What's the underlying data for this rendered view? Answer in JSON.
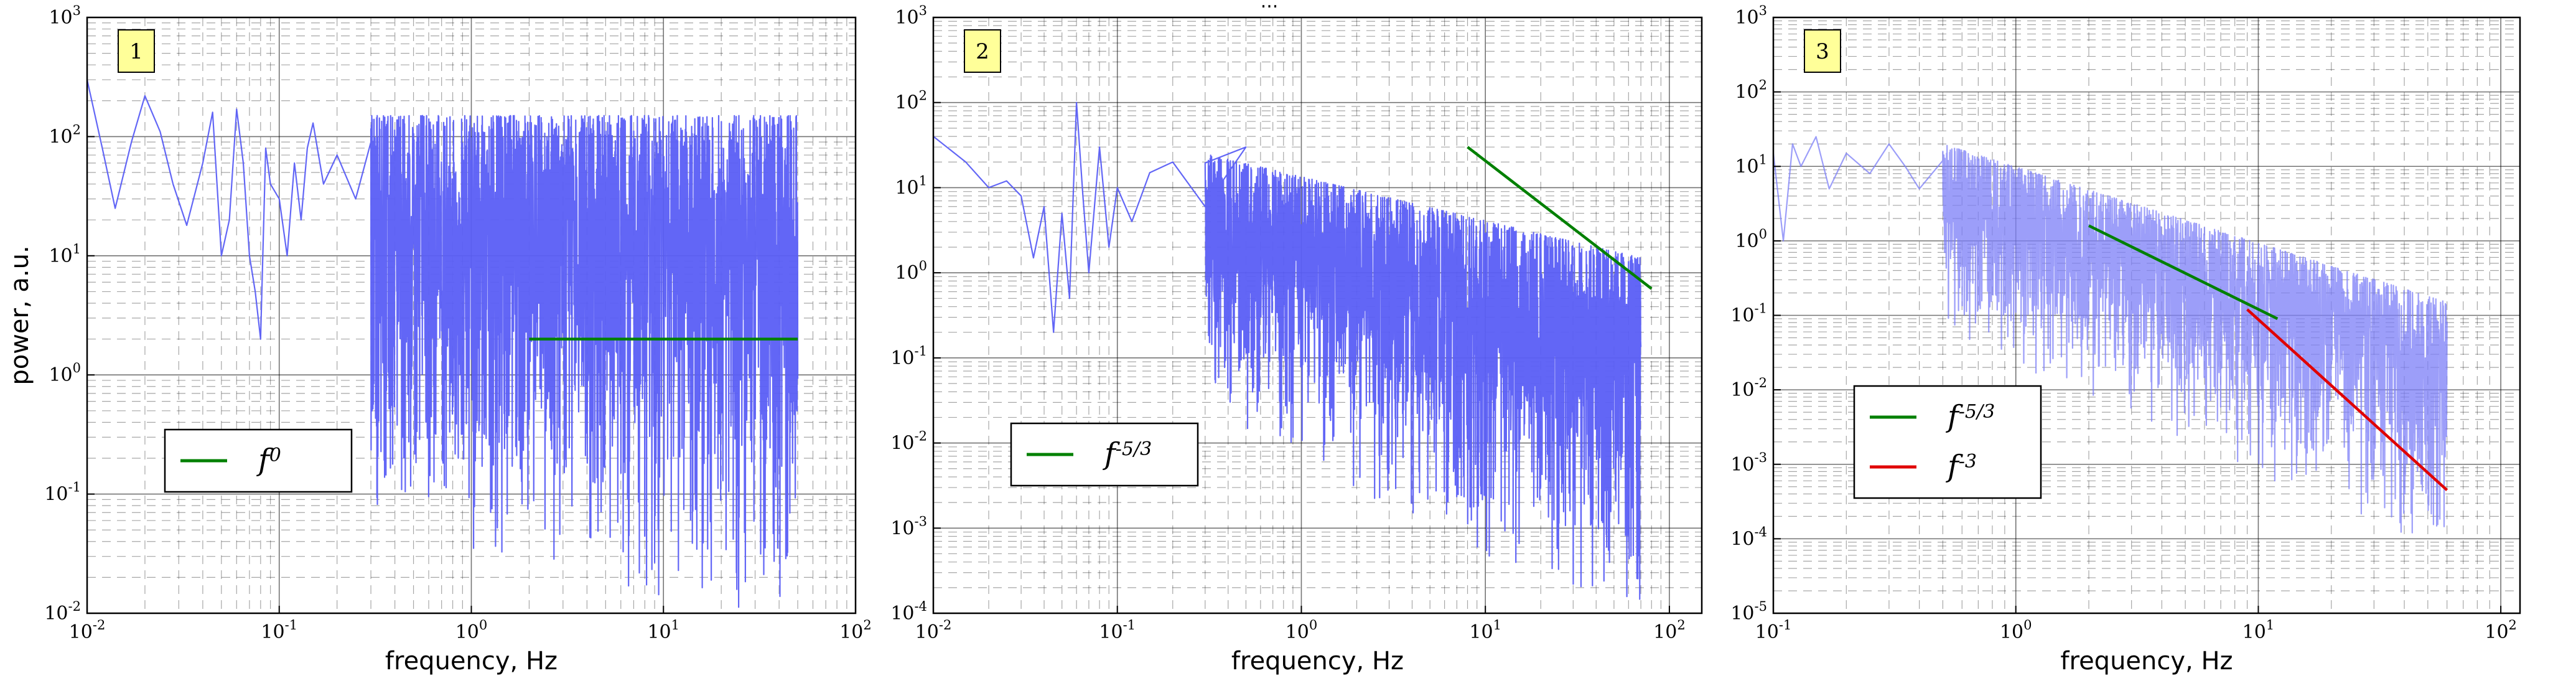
{
  "title_fragment": "...",
  "chart_data": [
    {
      "type": "line",
      "panel_label": "1",
      "xscale": "log",
      "yscale": "log",
      "xlim": [
        0.01,
        100
      ],
      "ylim": [
        0.01,
        1000
      ],
      "xlabel": "frequency, Hz",
      "ylabel": "power, a.u.",
      "grid": true,
      "legend": "bottom-left",
      "x_tick_labels": [
        {
          "base": "10",
          "exp": "-2"
        },
        {
          "base": "10",
          "exp": "-1"
        },
        {
          "base": "10",
          "exp": "0"
        },
        {
          "base": "10",
          "exp": "1"
        },
        {
          "base": "10",
          "exp": "2"
        }
      ],
      "y_tick_labels": [
        {
          "base": "10",
          "exp": "-2"
        },
        {
          "base": "10",
          "exp": "-1"
        },
        {
          "base": "10",
          "exp": "0"
        },
        {
          "base": "10",
          "exp": "1"
        },
        {
          "base": "10",
          "exp": "2"
        },
        {
          "base": "10",
          "exp": "3"
        }
      ],
      "series": [
        {
          "role": "spectrum",
          "color": "#5a5ef5",
          "x": [
            0.01,
            0.012,
            0.014,
            0.017,
            0.02,
            0.024,
            0.028,
            0.033,
            0.04,
            0.045,
            0.05,
            0.055,
            0.06,
            0.065,
            0.07,
            0.075,
            0.08,
            0.085,
            0.09,
            0.1,
            0.11,
            0.12,
            0.13,
            0.14,
            0.15,
            0.17,
            0.2,
            0.25,
            0.3
          ],
          "y": [
            300,
            80,
            25,
            90,
            220,
            110,
            40,
            18,
            60,
            160,
            10,
            20,
            170,
            60,
            10,
            5,
            2,
            80,
            40,
            30,
            10,
            60,
            20,
            80,
            130,
            40,
            70,
            30,
            90
          ],
          "noise_band": {
            "from": 0.3,
            "to": 50,
            "upper": [
              150,
              150
            ],
            "lower": [
              0.05,
              0.005
            ]
          }
        },
        {
          "role": "fit",
          "name": "f",
          "exponent": "0",
          "color": "#008000",
          "x": [
            2,
            50
          ],
          "y": [
            2,
            2
          ]
        }
      ]
    },
    {
      "type": "line",
      "panel_label": "2",
      "xscale": "log",
      "yscale": "log",
      "xlim": [
        0.01,
        150
      ],
      "ylim": [
        0.0001,
        1000
      ],
      "xlabel": "frequency, Hz",
      "ylabel": "",
      "grid": true,
      "legend": "bottom-left",
      "x_tick_labels": [
        {
          "base": "10",
          "exp": "-2"
        },
        {
          "base": "10",
          "exp": "-1"
        },
        {
          "base": "10",
          "exp": "0"
        },
        {
          "base": "10",
          "exp": "1"
        },
        {
          "base": "10",
          "exp": "2"
        }
      ],
      "y_tick_labels": [
        {
          "base": "10",
          "exp": "-4"
        },
        {
          "base": "10",
          "exp": "-3"
        },
        {
          "base": "10",
          "exp": "-2"
        },
        {
          "base": "10",
          "exp": "-1"
        },
        {
          "base": "10",
          "exp": "0"
        },
        {
          "base": "10",
          "exp": "1"
        },
        {
          "base": "10",
          "exp": "2"
        },
        {
          "base": "10",
          "exp": "3"
        }
      ],
      "series": [
        {
          "role": "spectrum",
          "color": "#5a5ef5",
          "x": [
            0.01,
            0.015,
            0.02,
            0.025,
            0.03,
            0.035,
            0.04,
            0.045,
            0.05,
            0.055,
            0.06,
            0.065,
            0.07,
            0.08,
            0.09,
            0.1,
            0.12,
            0.15,
            0.2,
            0.3,
            0.5
          ],
          "y": [
            40,
            20,
            10,
            12,
            8,
            1.5,
            6,
            0.2,
            5,
            0.5,
            100,
            8,
            1,
            30,
            2,
            10,
            4,
            15,
            20,
            6,
            30
          ],
          "noise_band": {
            "from": 0.3,
            "to": 70,
            "upper": [
              25,
              1.5
            ],
            "lower": [
              0.02,
              5e-05
            ]
          }
        },
        {
          "role": "fit",
          "name": "f",
          "exponent": "-5/3",
          "color": "#008000",
          "x": [
            8,
            80
          ],
          "y": [
            30,
            0.65
          ]
        }
      ]
    },
    {
      "type": "line",
      "panel_label": "3",
      "xscale": "log",
      "yscale": "log",
      "xlim": [
        0.1,
        120
      ],
      "ylim": [
        1e-05,
        1000
      ],
      "xlabel": "frequency, Hz",
      "ylabel": "",
      "grid": true,
      "legend": "center-left",
      "x_tick_labels": [
        {
          "base": "10",
          "exp": "-1"
        },
        {
          "base": "10",
          "exp": "0"
        },
        {
          "base": "10",
          "exp": "1"
        },
        {
          "base": "10",
          "exp": "2"
        }
      ],
      "y_tick_labels": [
        {
          "base": "10",
          "exp": "-5"
        },
        {
          "base": "10",
          "exp": "-4"
        },
        {
          "base": "10",
          "exp": "-3"
        },
        {
          "base": "10",
          "exp": "-2"
        },
        {
          "base": "10",
          "exp": "-1"
        },
        {
          "base": "10",
          "exp": "0"
        },
        {
          "base": "10",
          "exp": "1"
        },
        {
          "base": "10",
          "exp": "2"
        },
        {
          "base": "10",
          "exp": "3"
        }
      ],
      "series": [
        {
          "role": "spectrum",
          "color": "#7b7ef7",
          "x": [
            0.1,
            0.11,
            0.12,
            0.13,
            0.15,
            0.17,
            0.2,
            0.25,
            0.3,
            0.35,
            0.4,
            0.5
          ],
          "y": [
            15,
            1,
            20,
            10,
            25,
            5,
            15,
            8,
            20,
            10,
            5,
            12
          ],
          "noise_band": {
            "from": 0.5,
            "to": 60,
            "upper": [
              20,
              0.15
            ],
            "lower": [
              0.05,
              5e-05
            ]
          }
        },
        {
          "role": "fit",
          "name": "f",
          "exponent": "-5/3",
          "color": "#008000",
          "x": [
            2,
            12
          ],
          "y": [
            1.6,
            0.09
          ]
        },
        {
          "role": "fit",
          "name": "f",
          "exponent": "-3",
          "color": "#e00000",
          "x": [
            9,
            60
          ],
          "y": [
            0.12,
            0.00045
          ]
        }
      ]
    }
  ]
}
